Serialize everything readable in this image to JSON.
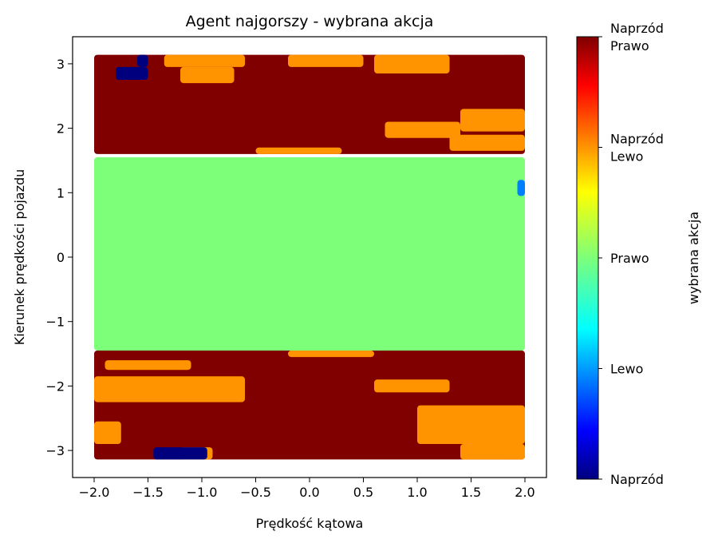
{
  "chart_data": {
    "type": "heatmap",
    "title": "Agent najgorszy - wybrana akcja",
    "xlabel": "Prędkość kątowa",
    "ylabel": "Kierunek prędkości pojazdu",
    "xlim": [
      -2.2,
      2.2
    ],
    "ylim": [
      -3.42,
      3.42
    ],
    "x_ticks": [
      -2.0,
      -1.5,
      -1.0,
      -0.5,
      0.0,
      0.5,
      1.0,
      1.5,
      2.0
    ],
    "x_tick_labels": [
      "−2.0",
      "−1.5",
      "−1.0",
      "−0.5",
      "0.0",
      "0.5",
      "1.0",
      "1.5",
      "2.0"
    ],
    "y_ticks": [
      -3,
      -2,
      -1,
      0,
      1,
      2,
      3
    ],
    "y_tick_labels": [
      "−3",
      "−2",
      "−1",
      "0",
      "1",
      "2",
      "3"
    ],
    "grid": false,
    "colormap": "jet",
    "colorbar": {
      "label": "wybrana akcja",
      "range": [
        0,
        4
      ],
      "ticks": [
        {
          "value": 0,
          "lines": [
            "Naprzód"
          ]
        },
        {
          "value": 1,
          "lines": [
            "Lewo"
          ]
        },
        {
          "value": 2,
          "lines": [
            "Prawo"
          ]
        },
        {
          "value": 3,
          "lines": [
            "Naprzód",
            "Lewo"
          ]
        },
        {
          "value": 4,
          "lines": [
            "Naprzód",
            "Prawo"
          ]
        }
      ]
    },
    "actions": [
      {
        "value": 0,
        "name": "Naprzód",
        "color": "#00007f"
      },
      {
        "value": 1,
        "name": "Lewo",
        "color": "#0080ff"
      },
      {
        "value": 2,
        "name": "Prawo",
        "color": "#7dff7a"
      },
      {
        "value": 3,
        "name": "Naprzód Lewo",
        "color": "#ff9400"
      },
      {
        "value": 4,
        "name": "Naprzód Prawo",
        "color": "#800000"
      }
    ],
    "data_extent": {
      "x": [
        -2.0,
        2.0
      ],
      "y": [
        -3.14,
        3.14
      ]
    },
    "regions": [
      {
        "action": 4,
        "x": [
          -2.0,
          2.0
        ],
        "y": [
          1.6,
          3.14
        ]
      },
      {
        "action": 3,
        "x": [
          -1.35,
          -0.6
        ],
        "y": [
          2.95,
          3.14
        ]
      },
      {
        "action": 3,
        "x": [
          -0.2,
          0.5
        ],
        "y": [
          2.95,
          3.14
        ]
      },
      {
        "action": 3,
        "x": [
          0.6,
          1.3
        ],
        "y": [
          2.85,
          3.14
        ]
      },
      {
        "action": 3,
        "x": [
          -1.2,
          -0.7
        ],
        "y": [
          2.7,
          2.95
        ]
      },
      {
        "action": 3,
        "x": [
          1.4,
          2.0
        ],
        "y": [
          1.95,
          2.3
        ]
      },
      {
        "action": 3,
        "x": [
          0.7,
          1.4
        ],
        "y": [
          1.85,
          2.1
        ]
      },
      {
        "action": 3,
        "x": [
          1.3,
          2.0
        ],
        "y": [
          1.65,
          1.9
        ]
      },
      {
        "action": 3,
        "x": [
          -0.5,
          0.3
        ],
        "y": [
          1.6,
          1.7
        ]
      },
      {
        "action": 0,
        "x": [
          -1.8,
          -1.5
        ],
        "y": [
          2.75,
          2.95
        ]
      },
      {
        "action": 0,
        "x": [
          -1.6,
          -1.5
        ],
        "y": [
          2.95,
          3.14
        ]
      },
      {
        "action": 2,
        "x": [
          -2.0,
          2.0
        ],
        "y": [
          -1.45,
          1.55
        ]
      },
      {
        "action": 1,
        "x": [
          1.93,
          2.0
        ],
        "y": [
          0.95,
          1.2
        ]
      },
      {
        "action": 4,
        "x": [
          -2.0,
          2.0
        ],
        "y": [
          -3.14,
          -1.45
        ]
      },
      {
        "action": 3,
        "x": [
          -2.0,
          -0.6
        ],
        "y": [
          -2.25,
          -1.85
        ]
      },
      {
        "action": 3,
        "x": [
          -1.9,
          -1.1
        ],
        "y": [
          -1.75,
          -1.6
        ]
      },
      {
        "action": 3,
        "x": [
          0.6,
          1.3
        ],
        "y": [
          -2.1,
          -1.9
        ]
      },
      {
        "action": 3,
        "x": [
          -0.2,
          0.6
        ],
        "y": [
          -1.55,
          -1.45
        ]
      },
      {
        "action": 3,
        "x": [
          1.0,
          2.0
        ],
        "y": [
          -2.9,
          -2.3
        ]
      },
      {
        "action": 3,
        "x": [
          1.4,
          2.0
        ],
        "y": [
          -3.14,
          -2.9
        ]
      },
      {
        "action": 3,
        "x": [
          -2.0,
          -1.75
        ],
        "y": [
          -2.9,
          -2.55
        ]
      },
      {
        "action": 3,
        "x": [
          -1.2,
          -0.9
        ],
        "y": [
          -3.14,
          -2.95
        ]
      },
      {
        "action": 0,
        "x": [
          -1.45,
          -0.95
        ],
        "y": [
          -3.14,
          -2.95
        ]
      }
    ]
  }
}
